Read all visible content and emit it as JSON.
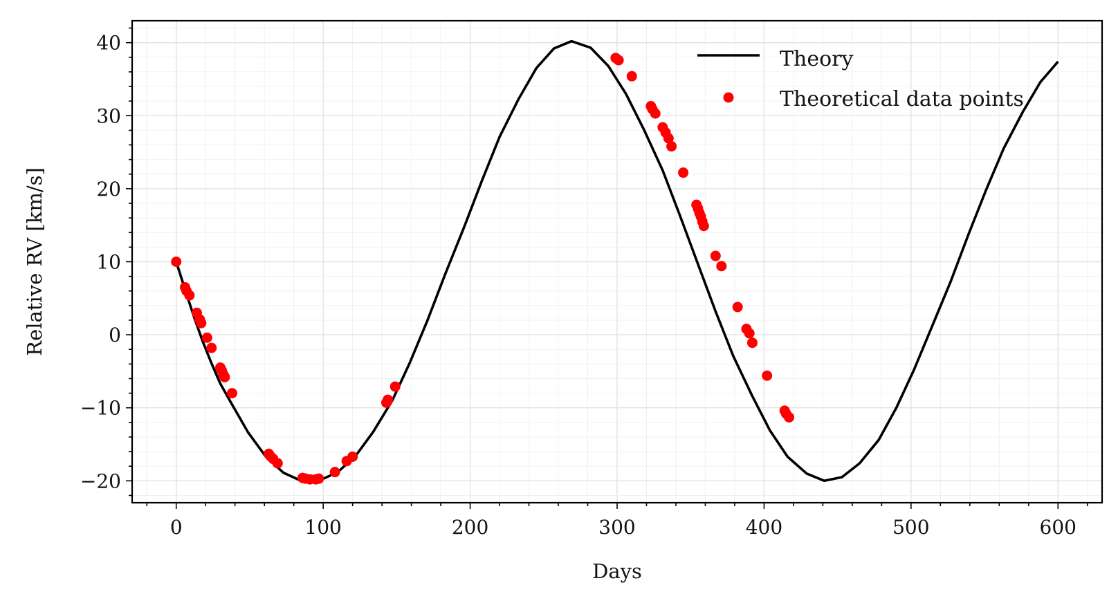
{
  "chart_data": {
    "type": "line",
    "xlabel": "Days",
    "ylabel": "Relative RV [km/s]",
    "xlim": [
      -30,
      630
    ],
    "ylim": [
      -23,
      43
    ],
    "xticks": [
      0,
      100,
      200,
      300,
      400,
      500,
      600
    ],
    "xtick_labels": [
      "0",
      "100",
      "200",
      "300",
      "400",
      "500",
      "600"
    ],
    "yticks": [
      -20,
      -10,
      0,
      10,
      20,
      30,
      40
    ],
    "ytick_labels": [
      "−20",
      "−10",
      "0",
      "10",
      "20",
      "30",
      "40"
    ],
    "grid": true,
    "legend_position": "top-right",
    "series": [
      {
        "name": "Theory",
        "kind": "line",
        "color": "#000000",
        "x": [
          0,
          6,
          12,
          18,
          24,
          30,
          37,
          49,
          61,
          73,
          85,
          97,
          110,
          122,
          134,
          147,
          159,
          171,
          183,
          196,
          208,
          220,
          233,
          245,
          257,
          269,
          282,
          294,
          306,
          318,
          331,
          343,
          355,
          367,
          379,
          392,
          404,
          416,
          429,
          441,
          453,
          465,
          478,
          490,
          502,
          514,
          527,
          539,
          551,
          563,
          576,
          588,
          600
        ],
        "y": [
          10.0,
          6.2,
          2.5,
          -0.9,
          -3.9,
          -6.7,
          -9.2,
          -13.4,
          -16.7,
          -18.9,
          -20.0,
          -20.0,
          -18.8,
          -16.6,
          -13.3,
          -9.0,
          -3.8,
          2.0,
          8.3,
          14.8,
          21.1,
          27.1,
          32.3,
          36.5,
          39.2,
          40.2,
          39.3,
          36.8,
          33.0,
          28.2,
          22.5,
          16.2,
          9.7,
          3.2,
          -2.9,
          -8.4,
          -13.1,
          -16.7,
          -19.0,
          -20.0,
          -19.5,
          -17.6,
          -14.4,
          -10.0,
          -4.8,
          1.0,
          7.3,
          13.7,
          19.8,
          25.5,
          30.5,
          34.6,
          37.4
        ]
      },
      {
        "name": "Theoretical data points",
        "kind": "scatter",
        "color": "#ff0000",
        "x": [
          0,
          6,
          7,
          9,
          14,
          16,
          17,
          21,
          24,
          30,
          31,
          32,
          33,
          38,
          63,
          64,
          66,
          69,
          86,
          88,
          91,
          95,
          97,
          108,
          116,
          120,
          143,
          144,
          149,
          299,
          301,
          310,
          323,
          324,
          326,
          331,
          333,
          335,
          337,
          345,
          354,
          355,
          356,
          357,
          358,
          359,
          367,
          371,
          382,
          388,
          390,
          392,
          402,
          414,
          415,
          417
        ],
        "y": [
          10.0,
          6.5,
          6.0,
          5.4,
          3.0,
          2.1,
          1.6,
          -0.4,
          -1.8,
          -4.5,
          -4.9,
          -5.4,
          -5.8,
          -8.0,
          -16.3,
          -16.6,
          -17.0,
          -17.6,
          -19.6,
          -19.7,
          -19.8,
          -19.8,
          -19.7,
          -18.8,
          -17.3,
          -16.7,
          -9.3,
          -8.9,
          -7.1,
          37.9,
          37.6,
          35.4,
          31.3,
          30.9,
          30.3,
          28.4,
          27.7,
          26.9,
          25.8,
          22.2,
          17.8,
          17.3,
          16.7,
          16.2,
          15.5,
          14.9,
          10.8,
          9.4,
          3.8,
          0.8,
          0.2,
          -1.1,
          -5.6,
          -10.4,
          -10.8,
          -11.3
        ]
      }
    ]
  }
}
